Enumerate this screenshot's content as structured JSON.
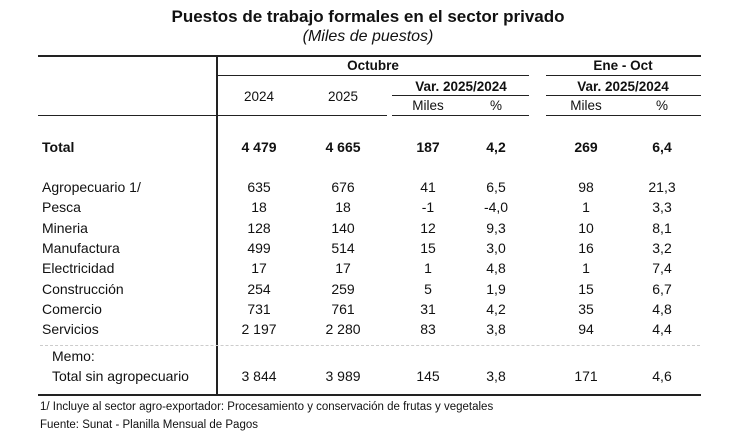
{
  "title": "Puestos de trabajo formales en el sector privado",
  "subtitle": "(Miles de puestos)",
  "header": {
    "group1": "Octubre",
    "group2": "Ene - Oct",
    "col_2024": "2024",
    "col_2025": "2025",
    "var1": "Var. 2025/2024",
    "var2": "Var. 2025/2024",
    "miles1": "Miles",
    "pct1": "%",
    "miles2": "Miles",
    "pct2": "%"
  },
  "total": {
    "label": "Total",
    "values": [
      "4 479",
      "4 665",
      "187",
      "4,2",
      "269",
      "6,4"
    ]
  },
  "rows": [
    {
      "label": "Agropecuario 1/",
      "values": [
        "635",
        "676",
        "41",
        "6,5",
        "98",
        "21,3"
      ]
    },
    {
      "label": "Pesca",
      "values": [
        "18",
        "18",
        "-1",
        "-4,0",
        "1",
        "3,3"
      ]
    },
    {
      "label": "Mineria",
      "values": [
        "128",
        "140",
        "12",
        "9,3",
        "10",
        "8,1"
      ]
    },
    {
      "label": "Manufactura",
      "values": [
        "499",
        "514",
        "15",
        "3,0",
        "16",
        "3,2"
      ]
    },
    {
      "label": "Electricidad",
      "values": [
        "17",
        "17",
        "1",
        "4,8",
        "1",
        "7,4"
      ]
    },
    {
      "label": "Construcción",
      "values": [
        "254",
        "259",
        "5",
        "1,9",
        "15",
        "6,7"
      ]
    },
    {
      "label": "Comercio",
      "values": [
        "731",
        "761",
        "31",
        "4,2",
        "35",
        "4,8"
      ]
    },
    {
      "label": "Servicios",
      "values": [
        "2 197",
        "2 280",
        "83",
        "3,8",
        "94",
        "4,4"
      ]
    }
  ],
  "memo": {
    "label": "Memo:",
    "row": {
      "label": "Total sin agropecuario",
      "values": [
        "3 844",
        "3 989",
        "145",
        "3,8",
        "171",
        "4,6"
      ]
    }
  },
  "footnotes": [
    "1/ Incluye al sector agro-exportador: Procesamiento y conservación de frutas y vegetales",
    "Fuente: Sunat - Planilla Mensual de Pagos"
  ]
}
